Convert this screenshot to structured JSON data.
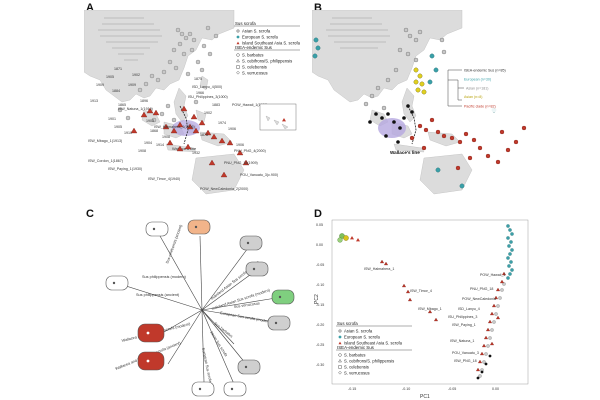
{
  "figure": {
    "panel_labels": [
      "A",
      "B",
      "C",
      "D"
    ]
  },
  "panel_a": {
    "legend": {
      "group1_title": "Sus scrofa",
      "group1_items": [
        "Asian S. scrofa",
        "European S. scrofa",
        "Island Southeast Asia S. scrofa"
      ],
      "group2_title": "ISEA-endemic Sus",
      "group2_items": [
        "S. barbatus",
        "S. cebifrons/S. philippensis",
        "S. celebensis",
        "S. verrucosus"
      ]
    },
    "site_labels": [
      {
        "text": "ISD_Lanyu_4(500)"
      },
      {
        "text": "ISU_Philippines_3(1000)"
      },
      {
        "text": "POW_Hawaii_1(1937)"
      },
      {
        "text": "ISW_Natuna_1(1919)"
      },
      {
        "text": "ISW_Halmahera_1(1906)"
      },
      {
        "text": "ISW_Mbago_1(1913)"
      },
      {
        "text": "ISW_Cordon_1(1867)"
      },
      {
        "text": "ISW_Paying_1(1930)"
      },
      {
        "text": "ISW_Timor_4(1940)"
      },
      {
        "text": "PNU_PNG_4(2000)"
      },
      {
        "text": "PNU_PNG_18(1909)"
      },
      {
        "text": "POU_Vanuatu_3(c.900)"
      },
      {
        "text": "POW_NewCaledonia_2(2000)"
      }
    ],
    "years": [
      "1871",
      "1905",
      "1909",
      "1884",
      "1902",
      "1909",
      "1875",
      "1865",
      "1913",
      "1896",
      "1903",
      "1910",
      "1901",
      "1905",
      "1868",
      "1908",
      "1974",
      "1902",
      "1883",
      "1904",
      "1908",
      "1966",
      "1878",
      "1906",
      "1932",
      "1906",
      "1914"
    ],
    "annotation": "Wallace's line"
  },
  "panel_b": {
    "annotation": "Wallace's line",
    "tree_legend": [
      {
        "label": "ISEA-endemic Sus (n=85)",
        "color": "#333333"
      },
      {
        "label": "European (n=30)",
        "color": "#3aa0a8"
      },
      {
        "label": "Asian (n=181)",
        "color": "#9e9e9e"
      },
      {
        "label": "Asian (n=8)",
        "color": "#d8c21a"
      },
      {
        "label": "Pacific clade (n=82)",
        "color": "#c0392b"
      }
    ]
  },
  "panel_c": {
    "branch_labels": [
      "Sus philippensis (modern)",
      "Sus celebensis (ancient)",
      "Sus philippensis (ancient)",
      "mainland Asian Sus scrofa (ancient)",
      "mainland Asian Sus scrofa (modern)",
      "Sus verrucosus",
      "Wallacea and Pacific Sus scrofa (modern)",
      "Wallacea and Pacific Sus scrofa (ancient)",
      "Sumatran Sus scrofa",
      "Javan Sus scrofa",
      "Sus barbatus",
      "European Sus scrofa (modern)"
    ]
  },
  "panel_d": {
    "xlabel": "PC1",
    "ylabel": "PC2",
    "x_ticks": [
      "-0.15",
      "-0.10",
      "-0.05",
      "0.00"
    ],
    "y_ticks": [
      "0.05",
      "0.00",
      "-0.05",
      "-0.10",
      "-0.15",
      "-0.20",
      "-0.25",
      "-0.30"
    ],
    "point_labels": [
      "ISW_Halmahera_1",
      "POW_Hawaii_1",
      "ISW_Timor_4",
      "PNU_PNG_18",
      "POW_NewCaledonia",
      "ISD_Lanyu_4",
      "ISU_Philippines_3",
      "ISW_Paying_1",
      "ISW_Mbago_1",
      "ISW_Natuna_1",
      "POU_Vanuatu_3",
      "ISW_PNG_18"
    ],
    "legend": {
      "group1_title": "Sus scrofa",
      "group1_items": [
        "Asian S. scrofa",
        "European S. scrofa",
        "Island Southeast Asia S. scrofa"
      ],
      "group2_title": "ISEA-endemic Sus",
      "group2_items": [
        "S. barbatus",
        "S. cebifrons/S. philippensis",
        "S. celebensis",
        "S. verrucosus"
      ]
    }
  }
}
